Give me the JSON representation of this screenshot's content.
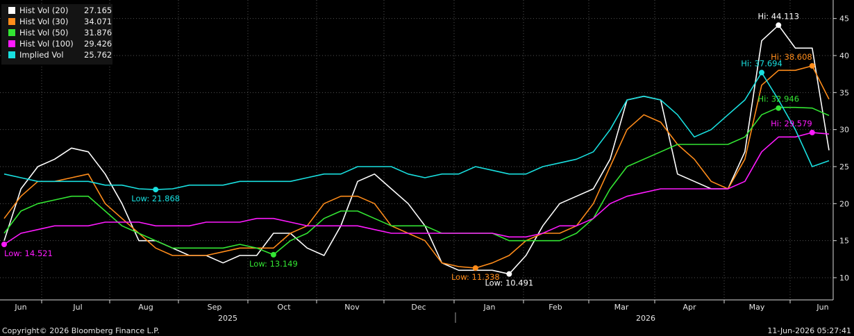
{
  "chart_data": {
    "type": "line",
    "ylim": [
      7,
      47.5
    ],
    "yticks": [
      10,
      15,
      20,
      25,
      30,
      35,
      40,
      45
    ],
    "y_axis_side": "right",
    "grid": true,
    "legend_placement": "top-left",
    "month_labels": [
      "Jun",
      "Jul",
      "Aug",
      "Sep",
      "Oct",
      "Nov",
      "Dec",
      "Jan",
      "Feb",
      "Mar",
      "Apr",
      "May",
      "Jun"
    ],
    "year_labels": [
      "2025",
      "2026"
    ],
    "series": [
      {
        "name": "Hist Vol (20)",
        "last": "27.165",
        "color": "#ffffff",
        "values": [
          [
            0,
            15
          ],
          [
            1,
            22
          ],
          [
            2,
            25
          ],
          [
            3,
            26
          ],
          [
            4,
            27.5
          ],
          [
            5,
            27
          ],
          [
            6,
            24
          ],
          [
            7,
            20
          ],
          [
            8,
            15
          ],
          [
            9,
            15
          ],
          [
            10,
            14
          ],
          [
            11,
            13
          ],
          [
            12,
            13
          ],
          [
            13,
            12
          ],
          [
            14,
            13
          ],
          [
            15,
            13
          ],
          [
            16,
            16
          ],
          [
            17,
            16
          ],
          [
            18,
            14
          ],
          [
            19,
            13
          ],
          [
            20,
            17
          ],
          [
            21,
            23
          ],
          [
            22,
            24
          ],
          [
            23,
            22
          ],
          [
            24,
            20
          ],
          [
            25,
            17
          ],
          [
            26,
            12
          ],
          [
            27,
            11
          ],
          [
            28,
            11
          ],
          [
            29,
            11
          ],
          [
            30,
            10.5
          ],
          [
            31,
            13
          ],
          [
            32,
            17
          ],
          [
            33,
            20
          ],
          [
            34,
            21
          ],
          [
            35,
            22
          ],
          [
            36,
            26
          ],
          [
            37,
            34
          ],
          [
            38,
            34.5
          ],
          [
            39,
            34
          ],
          [
            40,
            24
          ],
          [
            41,
            23
          ],
          [
            42,
            22
          ],
          [
            43,
            22
          ],
          [
            44,
            27
          ],
          [
            45,
            42
          ],
          [
            46,
            44.1
          ],
          [
            47,
            41
          ],
          [
            48,
            41
          ],
          [
            49,
            27.2
          ]
        ]
      },
      {
        "name": "Hist Vol (30)",
        "last": "34.071",
        "color": "#ff8c1a",
        "values": [
          [
            0,
            18
          ],
          [
            1,
            21
          ],
          [
            2,
            23
          ],
          [
            3,
            23
          ],
          [
            4,
            23.5
          ],
          [
            5,
            24
          ],
          [
            6,
            20
          ],
          [
            7,
            18
          ],
          [
            8,
            16
          ],
          [
            9,
            14
          ],
          [
            10,
            13
          ],
          [
            11,
            13
          ],
          [
            12,
            13
          ],
          [
            13,
            13.5
          ],
          [
            14,
            14
          ],
          [
            15,
            14
          ],
          [
            16,
            14
          ],
          [
            17,
            16
          ],
          [
            18,
            17
          ],
          [
            19,
            20
          ],
          [
            20,
            21
          ],
          [
            21,
            21
          ],
          [
            22,
            20
          ],
          [
            23,
            17
          ],
          [
            24,
            16
          ],
          [
            25,
            15
          ],
          [
            26,
            12
          ],
          [
            27,
            11.5
          ],
          [
            28,
            11.3
          ],
          [
            29,
            12
          ],
          [
            30,
            13
          ],
          [
            31,
            15
          ],
          [
            32,
            16
          ],
          [
            33,
            16
          ],
          [
            34,
            17
          ],
          [
            35,
            20
          ],
          [
            36,
            25
          ],
          [
            37,
            30
          ],
          [
            38,
            32
          ],
          [
            39,
            31
          ],
          [
            40,
            28
          ],
          [
            41,
            26
          ],
          [
            42,
            23
          ],
          [
            43,
            22
          ],
          [
            44,
            26
          ],
          [
            45,
            36
          ],
          [
            46,
            38
          ],
          [
            47,
            38
          ],
          [
            48,
            38.6
          ],
          [
            49,
            34.1
          ]
        ]
      },
      {
        "name": "Hist Vol (50)",
        "last": "31.876",
        "color": "#33e633",
        "values": [
          [
            0,
            16
          ],
          [
            1,
            19
          ],
          [
            2,
            20
          ],
          [
            3,
            20.5
          ],
          [
            4,
            21
          ],
          [
            5,
            21
          ],
          [
            6,
            19
          ],
          [
            7,
            17
          ],
          [
            8,
            16
          ],
          [
            9,
            15
          ],
          [
            10,
            14
          ],
          [
            11,
            14
          ],
          [
            12,
            14
          ],
          [
            13,
            14
          ],
          [
            14,
            14.5
          ],
          [
            15,
            14
          ],
          [
            16,
            13.1
          ],
          [
            17,
            15
          ],
          [
            18,
            16
          ],
          [
            19,
            18
          ],
          [
            20,
            19
          ],
          [
            21,
            19
          ],
          [
            22,
            18
          ],
          [
            23,
            17
          ],
          [
            24,
            17
          ],
          [
            25,
            17
          ],
          [
            26,
            16
          ],
          [
            27,
            16
          ],
          [
            28,
            16
          ],
          [
            29,
            16
          ],
          [
            30,
            15
          ],
          [
            31,
            15
          ],
          [
            32,
            15
          ],
          [
            33,
            15
          ],
          [
            34,
            16
          ],
          [
            35,
            18
          ],
          [
            36,
            22
          ],
          [
            37,
            25
          ],
          [
            38,
            26
          ],
          [
            39,
            27
          ],
          [
            40,
            28
          ],
          [
            41,
            28
          ],
          [
            42,
            28
          ],
          [
            43,
            28
          ],
          [
            44,
            29
          ],
          [
            45,
            32
          ],
          [
            46,
            33
          ],
          [
            47,
            33
          ],
          [
            48,
            32.9
          ],
          [
            49,
            31.9
          ]
        ]
      },
      {
        "name": "Hist Vol (100)",
        "last": "29.426",
        "color": "#ff1aff",
        "values": [
          [
            0,
            14.5
          ],
          [
            1,
            16
          ],
          [
            2,
            16.5
          ],
          [
            3,
            17
          ],
          [
            4,
            17
          ],
          [
            5,
            17
          ],
          [
            6,
            17.5
          ],
          [
            7,
            17.5
          ],
          [
            8,
            17.5
          ],
          [
            9,
            17
          ],
          [
            10,
            17
          ],
          [
            11,
            17
          ],
          [
            12,
            17.5
          ],
          [
            13,
            17.5
          ],
          [
            14,
            17.5
          ],
          [
            15,
            18
          ],
          [
            16,
            18
          ],
          [
            17,
            17.5
          ],
          [
            18,
            17
          ],
          [
            19,
            17
          ],
          [
            20,
            17
          ],
          [
            21,
            17
          ],
          [
            22,
            16.5
          ],
          [
            23,
            16
          ],
          [
            24,
            16
          ],
          [
            25,
            16
          ],
          [
            26,
            16
          ],
          [
            27,
            16
          ],
          [
            28,
            16
          ],
          [
            29,
            16
          ],
          [
            30,
            15.5
          ],
          [
            31,
            15.5
          ],
          [
            32,
            16
          ],
          [
            33,
            17
          ],
          [
            34,
            17
          ],
          [
            35,
            18
          ],
          [
            36,
            20
          ],
          [
            37,
            21
          ],
          [
            38,
            21.5
          ],
          [
            39,
            22
          ],
          [
            40,
            22
          ],
          [
            41,
            22
          ],
          [
            42,
            22
          ],
          [
            43,
            22
          ],
          [
            44,
            23
          ],
          [
            45,
            27
          ],
          [
            46,
            29
          ],
          [
            47,
            29
          ],
          [
            48,
            29.6
          ],
          [
            49,
            29.4
          ]
        ]
      },
      {
        "name": "Implied Vol",
        "last": "25.762",
        "color": "#19e0e0",
        "values": [
          [
            0,
            24
          ],
          [
            1,
            23.5
          ],
          [
            2,
            23
          ],
          [
            3,
            23
          ],
          [
            4,
            23
          ],
          [
            5,
            23
          ],
          [
            6,
            22.5
          ],
          [
            7,
            22.5
          ],
          [
            8,
            22
          ],
          [
            9,
            21.9
          ],
          [
            10,
            22
          ],
          [
            11,
            22.5
          ],
          [
            12,
            22.5
          ],
          [
            13,
            22.5
          ],
          [
            14,
            23
          ],
          [
            15,
            23
          ],
          [
            16,
            23
          ],
          [
            17,
            23
          ],
          [
            18,
            23.5
          ],
          [
            19,
            24
          ],
          [
            20,
            24
          ],
          [
            21,
            25
          ],
          [
            22,
            25
          ],
          [
            23,
            25
          ],
          [
            24,
            24
          ],
          [
            25,
            23.5
          ],
          [
            26,
            24
          ],
          [
            27,
            24
          ],
          [
            28,
            25
          ],
          [
            29,
            24.5
          ],
          [
            30,
            24
          ],
          [
            31,
            24
          ],
          [
            32,
            25
          ],
          [
            33,
            25.5
          ],
          [
            34,
            26
          ],
          [
            35,
            27
          ],
          [
            36,
            30
          ],
          [
            37,
            34
          ],
          [
            38,
            34.5
          ],
          [
            39,
            34
          ],
          [
            40,
            32
          ],
          [
            41,
            29
          ],
          [
            42,
            30
          ],
          [
            43,
            32
          ],
          [
            44,
            34
          ],
          [
            45,
            37.7
          ],
          [
            46,
            34
          ],
          [
            47,
            30
          ],
          [
            48,
            25
          ],
          [
            49,
            25.8
          ]
        ]
      }
    ],
    "annotations": [
      {
        "text": "Hi: 44.113",
        "series": 0,
        "x": 46,
        "y": 44.1,
        "color": "#ffffff"
      },
      {
        "text": "Low: 10.491",
        "series": 0,
        "x": 30,
        "y": 10.5,
        "color": "#ffffff"
      },
      {
        "text": "Hi: 38.608",
        "series": 1,
        "x": 48,
        "y": 38.6,
        "color": "#ff8c1a"
      },
      {
        "text": "Low: 11.338",
        "series": 1,
        "x": 28,
        "y": 11.3,
        "color": "#ff8c1a"
      },
      {
        "text": "Hi: 32.946",
        "series": 2,
        "x": 46,
        "y": 32.9,
        "color": "#33e633"
      },
      {
        "text": "Low: 13.149",
        "series": 2,
        "x": 16,
        "y": 13.1,
        "color": "#33e633"
      },
      {
        "text": "Hi: 29.579",
        "series": 3,
        "x": 48,
        "y": 29.6,
        "color": "#ff1aff"
      },
      {
        "text": "Low: 14.521",
        "series": 3,
        "x": 0,
        "y": 14.5,
        "color": "#ff1aff"
      },
      {
        "text": "Hi: 37.694",
        "series": 4,
        "x": 45,
        "y": 37.7,
        "color": "#19e0e0"
      },
      {
        "text": "Low: 21.868",
        "series": 4,
        "x": 9,
        "y": 21.9,
        "color": "#19e0e0"
      }
    ]
  },
  "footer": {
    "copyright": "Copyright© 2026 Bloomberg Finance L.P.",
    "timestamp": "11-Jun-2026 05:27:41"
  }
}
